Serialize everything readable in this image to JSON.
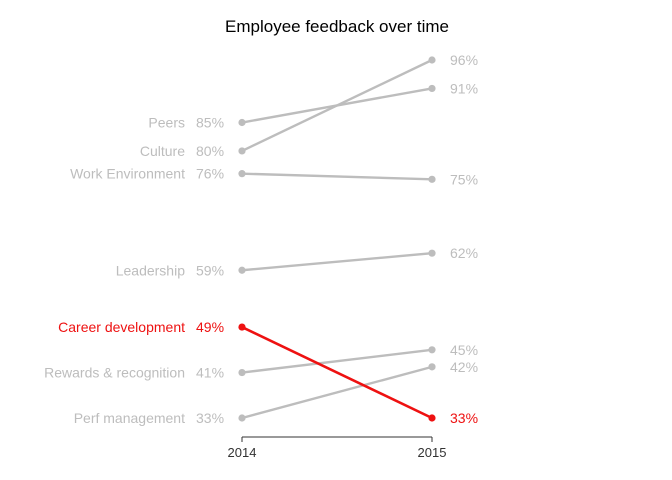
{
  "chart_data": {
    "type": "line",
    "title": "Employee feedback over time",
    "x": [
      "2014",
      "2015"
    ],
    "xlabel": "",
    "ylabel": "",
    "ylim": [
      30,
      100
    ],
    "grid": false,
    "legend": "none",
    "value_suffix": "%",
    "colors": {
      "default": "#bdbdbd",
      "highlight": "#ee1111",
      "axis": "#333333"
    },
    "series": [
      {
        "name": "Peers",
        "values": [
          85,
          91
        ],
        "highlight": false
      },
      {
        "name": "Culture",
        "values": [
          80,
          96
        ],
        "highlight": false
      },
      {
        "name": "Work Environment",
        "values": [
          76,
          75
        ],
        "highlight": false
      },
      {
        "name": "Leadership",
        "values": [
          59,
          62
        ],
        "highlight": false
      },
      {
        "name": "Career development",
        "values": [
          49,
          33
        ],
        "highlight": true
      },
      {
        "name": "Rewards & recognition",
        "values": [
          41,
          45
        ],
        "highlight": false
      },
      {
        "name": "Perf management",
        "values": [
          33,
          42
        ],
        "highlight": false
      }
    ]
  }
}
